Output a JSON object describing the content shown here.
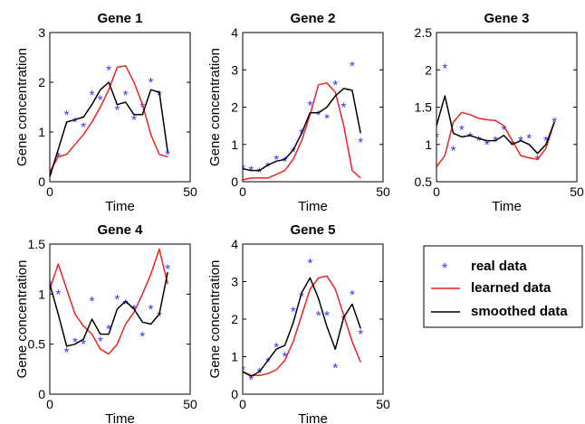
{
  "legend": {
    "entries": [
      {
        "label": "real data",
        "marker": "star",
        "color": "#3333ff"
      },
      {
        "label": "learned data",
        "marker": "line",
        "color": "#ee2222"
      },
      {
        "label": "smoothed data",
        "marker": "line",
        "color": "#000000"
      }
    ]
  },
  "chart_data": [
    {
      "type": "line",
      "title": "Gene 1",
      "xlabel": "Time",
      "ylabel": "Gene concentration",
      "xlim": [
        0,
        50
      ],
      "ylim": [
        0,
        3
      ],
      "xticks": [
        0,
        50
      ],
      "yticks": [
        0,
        1,
        2,
        3
      ],
      "grid": false,
      "series": [
        {
          "name": "real data",
          "kind": "scatter",
          "x": [
            0,
            3,
            6,
            9,
            12,
            15,
            18,
            21,
            24,
            27,
            30,
            33,
            36,
            39,
            42
          ],
          "y": [
            0.15,
            0.5,
            1.35,
            1.2,
            1.1,
            1.75,
            1.65,
            2.25,
            1.45,
            1.75,
            1.25,
            1.5,
            2.0,
            1.75,
            0.55
          ]
        },
        {
          "name": "learned data",
          "kind": "line",
          "x": [
            0,
            3,
            6,
            9,
            12,
            15,
            18,
            21,
            24,
            27,
            30,
            33,
            36,
            39,
            42
          ],
          "y": [
            0.2,
            0.5,
            0.55,
            0.75,
            0.95,
            1.2,
            1.5,
            1.85,
            2.3,
            2.33,
            2.0,
            1.55,
            0.95,
            0.55,
            0.5
          ]
        },
        {
          "name": "smoothed data",
          "kind": "line",
          "x": [
            0,
            3,
            6,
            9,
            12,
            15,
            18,
            21,
            24,
            27,
            30,
            33,
            36,
            39,
            42
          ],
          "y": [
            0.1,
            0.65,
            1.2,
            1.25,
            1.3,
            1.55,
            1.85,
            2.0,
            1.55,
            1.6,
            1.35,
            1.35,
            1.85,
            1.8,
            0.6
          ]
        }
      ]
    },
    {
      "type": "line",
      "title": "Gene 2",
      "xlabel": "Time",
      "ylabel": "Gene concentration",
      "xlim": [
        0,
        50
      ],
      "ylim": [
        0,
        4
      ],
      "xticks": [
        0,
        50
      ],
      "yticks": [
        0,
        1,
        2,
        3,
        4
      ],
      "grid": false,
      "series": [
        {
          "name": "real data",
          "kind": "scatter",
          "x": [
            0,
            3,
            6,
            9,
            12,
            15,
            18,
            21,
            24,
            27,
            30,
            33,
            36,
            39,
            42
          ],
          "y": [
            0.35,
            0.3,
            0.25,
            0.4,
            0.6,
            0.55,
            0.8,
            1.3,
            2.05,
            1.8,
            1.7,
            2.6,
            2.0,
            3.1,
            1.05
          ]
        },
        {
          "name": "learned data",
          "kind": "line",
          "x": [
            0,
            3,
            6,
            9,
            12,
            15,
            18,
            21,
            24,
            27,
            30,
            33,
            36,
            39,
            42
          ],
          "y": [
            0.05,
            0.1,
            0.1,
            0.1,
            0.2,
            0.3,
            0.6,
            1.1,
            1.8,
            2.6,
            2.65,
            2.4,
            1.5,
            0.3,
            0.1
          ]
        },
        {
          "name": "smoothed data",
          "kind": "line",
          "x": [
            0,
            3,
            6,
            9,
            12,
            15,
            18,
            21,
            24,
            27,
            30,
            33,
            36,
            39,
            42
          ],
          "y": [
            0.35,
            0.3,
            0.3,
            0.45,
            0.55,
            0.6,
            0.85,
            1.3,
            1.85,
            1.85,
            2.0,
            2.3,
            2.5,
            2.45,
            1.3
          ]
        }
      ]
    },
    {
      "type": "line",
      "title": "Gene 3",
      "xlabel": "Time",
      "ylabel": "",
      "xlim": [
        0,
        50
      ],
      "ylim": [
        0.5,
        2.5
      ],
      "xticks": [
        0,
        50
      ],
      "yticks": [
        0.5,
        1,
        1.5,
        2,
        2.5
      ],
      "ytick_labels": [
        "0.5",
        "1",
        "1.5",
        "2",
        "2.5"
      ],
      "grid": false,
      "series": [
        {
          "name": "real data",
          "kind": "scatter",
          "x": [
            0,
            3,
            6,
            9,
            12,
            15,
            18,
            21,
            24,
            27,
            30,
            33,
            36,
            39,
            42
          ],
          "y": [
            1.1,
            2.02,
            0.92,
            1.2,
            1.1,
            1.05,
            1.0,
            1.05,
            1.2,
            1.0,
            1.05,
            1.08,
            0.8,
            1.05,
            1.3
          ]
        },
        {
          "name": "learned data",
          "kind": "line",
          "x": [
            0,
            3,
            6,
            9,
            12,
            15,
            18,
            21,
            24,
            27,
            30,
            33,
            36,
            39,
            42
          ],
          "y": [
            0.7,
            0.85,
            1.3,
            1.43,
            1.4,
            1.35,
            1.33,
            1.32,
            1.25,
            1.05,
            0.85,
            0.82,
            0.8,
            0.95,
            1.3
          ]
        },
        {
          "name": "smoothed data",
          "kind": "line",
          "x": [
            0,
            3,
            6,
            9,
            12,
            15,
            18,
            21,
            24,
            27,
            30,
            33,
            36,
            39,
            42
          ],
          "y": [
            1.25,
            1.65,
            1.15,
            1.1,
            1.12,
            1.08,
            1.05,
            1.05,
            1.12,
            1.0,
            1.05,
            1.0,
            0.88,
            1.0,
            1.3
          ]
        }
      ]
    },
    {
      "type": "line",
      "title": "Gene 4",
      "xlabel": "Time",
      "ylabel": "Gene concentration",
      "xlim": [
        0,
        50
      ],
      "ylim": [
        0,
        1.5
      ],
      "xticks": [
        0,
        50
      ],
      "yticks": [
        0,
        0.5,
        1,
        1.5
      ],
      "ytick_labels": [
        "0",
        "0.5",
        "1",
        "1.5"
      ],
      "grid": false,
      "series": [
        {
          "name": "real data",
          "kind": "scatter",
          "x": [
            0,
            3,
            6,
            9,
            12,
            15,
            18,
            21,
            24,
            27,
            30,
            33,
            36,
            39,
            42
          ],
          "y": [
            1.1,
            1.0,
            0.42,
            0.52,
            0.5,
            0.93,
            0.53,
            0.65,
            0.95,
            0.9,
            0.85,
            0.58,
            0.85,
            0.78,
            1.25
          ]
        },
        {
          "name": "learned data",
          "kind": "line",
          "x": [
            0,
            3,
            6,
            9,
            12,
            15,
            18,
            21,
            24,
            27,
            30,
            33,
            36,
            39,
            42
          ],
          "y": [
            1.05,
            1.3,
            1.05,
            0.8,
            0.68,
            0.6,
            0.45,
            0.4,
            0.5,
            0.7,
            0.82,
            1.0,
            1.2,
            1.45,
            1.1
          ]
        },
        {
          "name": "smoothed data",
          "kind": "line",
          "x": [
            0,
            3,
            6,
            9,
            12,
            15,
            18,
            21,
            24,
            27,
            30,
            33,
            36,
            39,
            42
          ],
          "y": [
            1.1,
            0.8,
            0.48,
            0.5,
            0.55,
            0.75,
            0.6,
            0.6,
            0.85,
            0.93,
            0.85,
            0.72,
            0.7,
            0.8,
            1.22
          ]
        }
      ]
    },
    {
      "type": "line",
      "title": "Gene 5",
      "xlabel": "Time",
      "ylabel": "Gene concentration",
      "xlim": [
        0,
        50
      ],
      "ylim": [
        0,
        4
      ],
      "xticks": [
        0,
        50
      ],
      "yticks": [
        0,
        1,
        2,
        3,
        4
      ],
      "grid": false,
      "series": [
        {
          "name": "real data",
          "kind": "scatter",
          "x": [
            0,
            3,
            6,
            9,
            12,
            15,
            18,
            21,
            24,
            27,
            30,
            33,
            36,
            39,
            42
          ],
          "y": [
            0.65,
            0.38,
            0.58,
            0.85,
            1.25,
            1.0,
            2.2,
            2.6,
            3.5,
            2.1,
            2.1,
            0.7,
            2.0,
            2.65,
            1.6
          ]
        },
        {
          "name": "learned data",
          "kind": "line",
          "x": [
            0,
            3,
            6,
            9,
            12,
            15,
            18,
            21,
            24,
            27,
            30,
            33,
            36,
            39,
            42
          ],
          "y": [
            0.6,
            0.5,
            0.5,
            0.55,
            0.65,
            0.9,
            1.4,
            2.1,
            2.8,
            3.1,
            3.15,
            2.8,
            2.1,
            1.4,
            0.85
          ]
        },
        {
          "name": "smoothed data",
          "kind": "line",
          "x": [
            0,
            3,
            6,
            9,
            12,
            15,
            18,
            21,
            24,
            27,
            30,
            33,
            36,
            39,
            42
          ],
          "y": [
            0.6,
            0.48,
            0.6,
            0.9,
            1.2,
            1.3,
            1.9,
            2.7,
            3.1,
            2.55,
            1.8,
            1.2,
            2.05,
            2.4,
            1.75
          ]
        }
      ]
    }
  ]
}
